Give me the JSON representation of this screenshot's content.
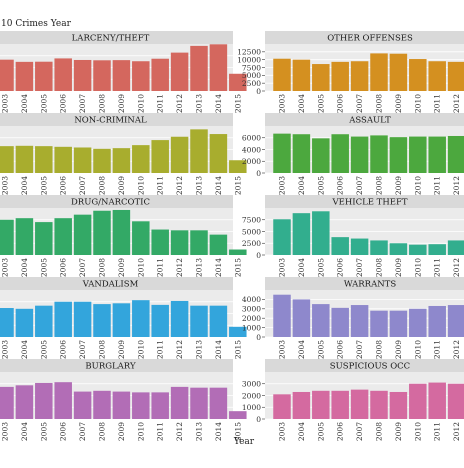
{
  "chart_data": {
    "type": "bar",
    "title": "10 Crimes Year",
    "xlabel": "Year",
    "ylabel": "",
    "categories": [
      "2003",
      "2004",
      "2005",
      "2006",
      "2007",
      "2008",
      "2009",
      "2010",
      "2011",
      "2012",
      "2013",
      "2014",
      "2015"
    ],
    "grid": true,
    "legend": "none",
    "panels": [
      {
        "name": "LARCENY/THEFT",
        "color": "#D4675E",
        "ylim": [
          0,
          30000
        ],
        "ticks": [],
        "values": [
          20000,
          18600,
          18700,
          20800,
          19800,
          19600,
          19700,
          19000,
          20600,
          24500,
          28800,
          29800,
          11000
        ]
      },
      {
        "name": "OTHER OFFENSES",
        "color": "#D49020",
        "ylim": [
          0,
          15000
        ],
        "ticks": [
          0,
          2500,
          5000,
          7500,
          10000,
          12500
        ],
        "values": [
          10300,
          10000,
          8600,
          9300,
          9500,
          12000,
          11900,
          10200,
          9500,
          9300,
          8900,
          9000,
          8300
        ]
      },
      {
        "name": "NON-CRIMINAL",
        "color": "#A8AD2E",
        "ylim": [
          0,
          14000
        ],
        "ticks": [],
        "values": [
          8000,
          8100,
          8000,
          7800,
          7600,
          7200,
          7400,
          8300,
          9800,
          10800,
          13000,
          11600,
          3800
        ]
      },
      {
        "name": "ASSAULT",
        "color": "#4CA83E",
        "ylim": [
          0,
          8000
        ],
        "ticks": [
          0,
          2000,
          4000,
          6000
        ],
        "values": [
          6700,
          6600,
          5900,
          6600,
          6200,
          6400,
          6100,
          6200,
          6200,
          6300,
          6300,
          6400,
          6100
        ]
      },
      {
        "name": "DRUG/NARCOTIC",
        "color": "#33A966",
        "ylim": [
          0,
          12000
        ],
        "ticks": [],
        "values": [
          9000,
          9400,
          8400,
          9400,
          10300,
          11300,
          11500,
          8600,
          6500,
          6300,
          6300,
          5200,
          1400
        ]
      },
      {
        "name": "VEHICLE THEFT",
        "color": "#32AE8E",
        "ylim": [
          0,
          10000
        ],
        "ticks": [
          0,
          2500,
          5000,
          7500
        ],
        "values": [
          7600,
          8900,
          9300,
          3800,
          3500,
          3100,
          2500,
          2200,
          2300,
          3100,
          3300,
          3200,
          2900
        ]
      },
      {
        "name": "VANDALISM",
        "color": "#33A5DC",
        "ylim": [
          0,
          6000
        ],
        "ticks": [],
        "values": [
          3700,
          3600,
          4000,
          4500,
          4500,
          4200,
          4300,
          4700,
          4100,
          4600,
          4000,
          4000,
          1300
        ]
      },
      {
        "name": "WARRANTS",
        "color": "#8E88CC",
        "ylim": [
          0,
          5000
        ],
        "ticks": [
          0,
          1000,
          2000,
          3000,
          4000
        ],
        "values": [
          4500,
          4000,
          3500,
          3100,
          3400,
          2800,
          2800,
          3000,
          3300,
          3400,
          3300,
          3600,
          3000
        ]
      },
      {
        "name": "BURGLARY",
        "color": "#B26DB6",
        "ylim": [
          0,
          6000
        ],
        "ticks": [],
        "values": [
          4100,
          4300,
          4600,
          4700,
          3500,
          3600,
          3500,
          3400,
          3400,
          4100,
          4000,
          4000,
          1000
        ]
      },
      {
        "name": "SUSPICIOUS OCC",
        "color": "#D46AA0",
        "ylim": [
          0,
          4000
        ],
        "ticks": [
          0,
          1000,
          2000,
          3000
        ],
        "values": [
          2100,
          2300,
          2400,
          2400,
          2500,
          2400,
          2300,
          3000,
          3100,
          3000,
          3000,
          2800,
          2600
        ]
      }
    ]
  }
}
